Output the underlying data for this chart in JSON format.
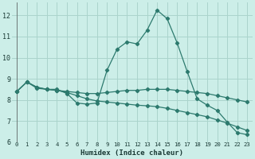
{
  "xlabel": "Humidex (Indice chaleur)",
  "bg_color": "#cceee8",
  "grid_color": "#aad4cc",
  "line_color": "#2d7a6e",
  "xlim": [
    -0.5,
    23.5
  ],
  "ylim": [
    6,
    12.6
  ],
  "yticks": [
    6,
    7,
    8,
    9,
    10,
    11,
    12
  ],
  "xticks": [
    0,
    1,
    2,
    3,
    4,
    5,
    6,
    7,
    8,
    9,
    10,
    11,
    12,
    13,
    14,
    15,
    16,
    17,
    18,
    19,
    20,
    21,
    22,
    23
  ],
  "curve1": [
    8.4,
    8.85,
    8.6,
    8.5,
    8.5,
    8.3,
    7.85,
    7.8,
    7.85,
    9.4,
    10.4,
    10.75,
    10.65,
    11.3,
    12.25,
    11.85,
    10.7,
    9.35,
    8.05,
    7.75,
    7.5,
    6.95,
    6.45,
    6.35
  ],
  "curve2": [
    8.4,
    8.85,
    8.6,
    8.5,
    8.45,
    8.4,
    8.35,
    8.3,
    8.3,
    8.35,
    8.4,
    8.45,
    8.45,
    8.5,
    8.5,
    8.5,
    8.45,
    8.4,
    8.35,
    8.3,
    8.2,
    8.1,
    8.0,
    7.9
  ],
  "curve3": [
    8.4,
    8.85,
    8.55,
    8.5,
    8.45,
    8.35,
    8.2,
    8.05,
    7.95,
    7.9,
    7.85,
    7.8,
    7.75,
    7.72,
    7.68,
    7.6,
    7.5,
    7.4,
    7.3,
    7.2,
    7.05,
    6.9,
    6.72,
    6.55
  ]
}
